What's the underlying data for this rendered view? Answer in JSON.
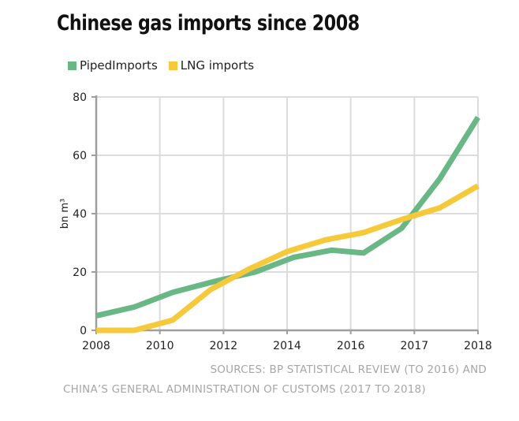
{
  "title": "Chinese gas imports since 2008",
  "colors": {
    "piped": "#6ab786",
    "lng": "#f6c93a",
    "grid": "#dcdcdc",
    "axis": "#9e9e9e"
  },
  "chart_data": {
    "type": "line",
    "title": "Chinese gas imports since 2008",
    "xlabel": "",
    "ylabel": "bn m³",
    "ylim": [
      0,
      80
    ],
    "yticks": [
      0,
      20,
      40,
      60,
      80
    ],
    "x_tick_labels": [
      "2008",
      "2010",
      "2012",
      "2014",
      "2016",
      "2017",
      "2018"
    ],
    "x_positions": [
      0,
      1,
      2,
      3,
      4,
      5,
      6
    ],
    "grid": true,
    "legend_position": "top-left",
    "series": [
      {
        "name": "PipedImports",
        "color": "#6ab786",
        "x": [
          0,
          0.6,
          1.2,
          1.9,
          2.5,
          3.1,
          3.7,
          4.2,
          4.8,
          5.4,
          6.0
        ],
        "values": [
          5,
          8,
          13,
          17,
          20,
          25,
          27.5,
          26.5,
          35,
          52,
          73
        ]
      },
      {
        "name": "LNG imports",
        "color": "#f6c93a",
        "x": [
          0,
          0.6,
          1.2,
          1.8,
          2.4,
          3.0,
          3.6,
          4.2,
          4.8,
          5.4,
          6.0
        ],
        "values": [
          0,
          0,
          3.5,
          14,
          21,
          27,
          31,
          33.5,
          38,
          42,
          49.5
        ]
      }
    ]
  },
  "sources": {
    "line1": "SOURCES: BP STATISTICAL REVIEW (TO 2016) AND",
    "line2": "CHINA’S GENERAL ADMINISTRATION OF CUSTOMS (2017 TO 2018)"
  }
}
